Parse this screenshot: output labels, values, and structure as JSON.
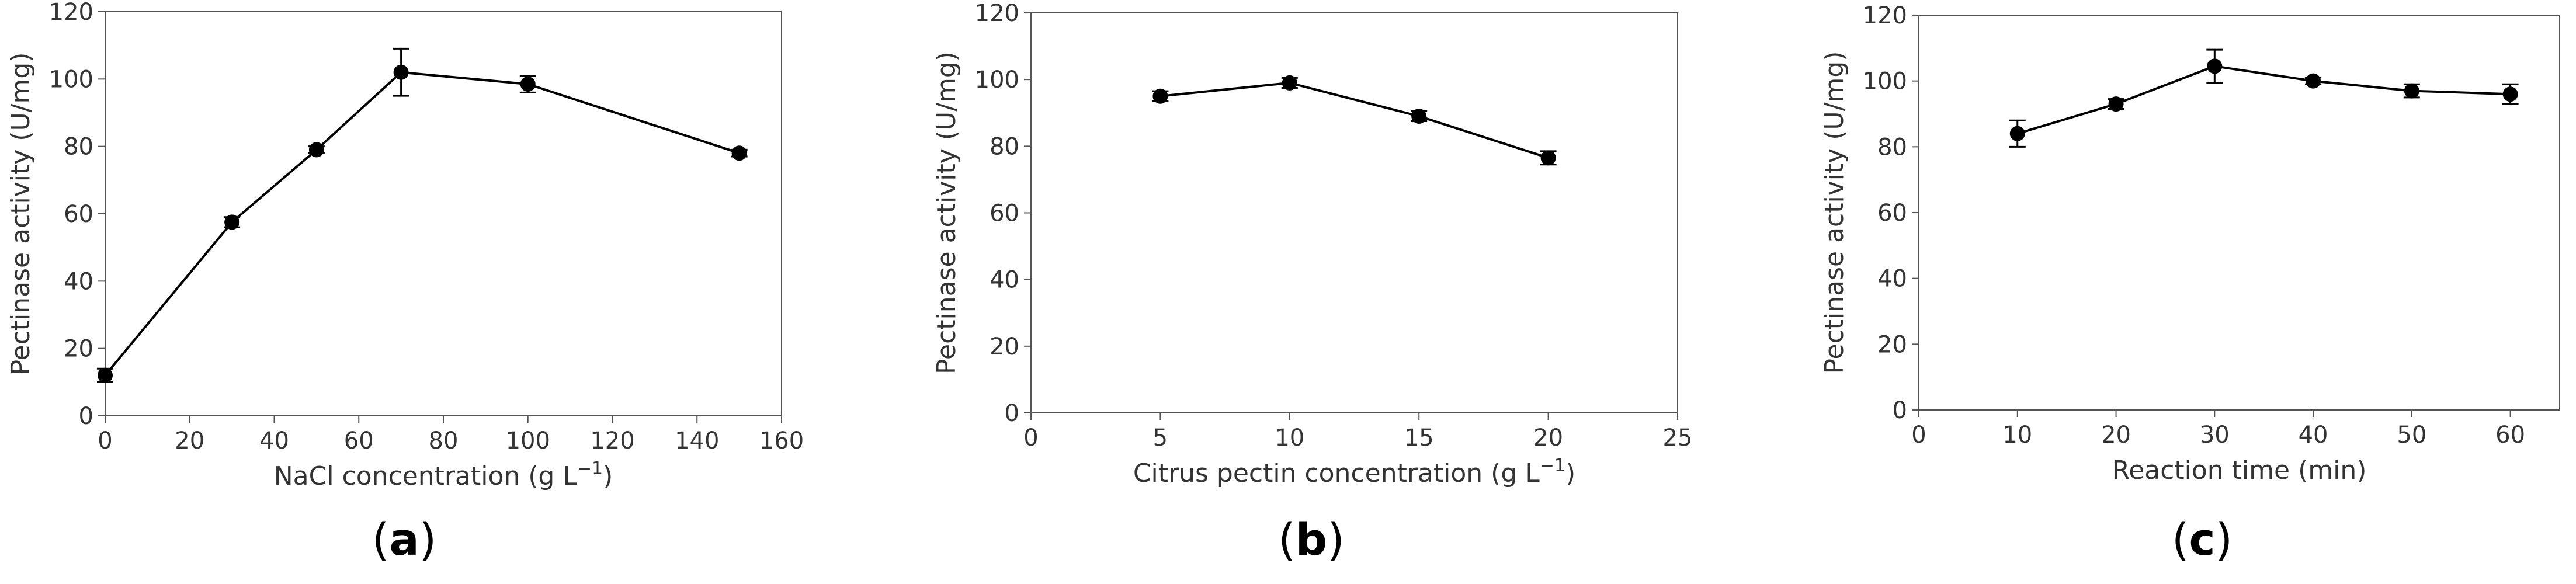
{
  "chart_data": [
    {
      "type": "line",
      "panel": "a",
      "panel_label": "a",
      "xlabel": "NaCl concentration (g L",
      "xlabel_sup": "−1",
      "xlabel_close": ")",
      "ylabel": "Pectinase activity (U/mg)",
      "xlim": [
        0,
        160
      ],
      "ylim": [
        0,
        120
      ],
      "xticks": [
        "0",
        "20",
        "40",
        "60",
        "80",
        "100",
        "120",
        "140",
        "160"
      ],
      "yticks": [
        "0",
        "20",
        "40",
        "60",
        "80",
        "100",
        "120"
      ],
      "x": [
        0,
        30,
        50,
        70,
        100,
        150
      ],
      "y": [
        12,
        57.5,
        79,
        102,
        98.5,
        78
      ],
      "err": [
        2,
        1.5,
        1,
        7,
        2.5,
        1
      ]
    },
    {
      "type": "line",
      "panel": "b",
      "panel_label": "b",
      "xlabel": "Citrus pectin concentration (g L",
      "xlabel_sup": "−1",
      "xlabel_close": ")",
      "ylabel": "Pectinase activity (U/mg)",
      "xlim": [
        0,
        25
      ],
      "ylim": [
        0,
        120
      ],
      "xticks": [
        "0",
        "5",
        "10",
        "15",
        "20",
        "25"
      ],
      "yticks": [
        "0",
        "20",
        "40",
        "60",
        "80",
        "100",
        "120"
      ],
      "x": [
        5,
        10,
        15,
        20
      ],
      "y": [
        95,
        99,
        89,
        76.5
      ],
      "err": [
        1.5,
        1.5,
        1.5,
        2
      ]
    },
    {
      "type": "line",
      "panel": "c",
      "panel_label": "c",
      "xlabel": "Reaction time (min)",
      "xlabel_sup": "",
      "xlabel_close": "",
      "ylabel": "Pectinase activity (U/mg)",
      "xlim": [
        0,
        65
      ],
      "ylim": [
        0,
        120
      ],
      "xticks": [
        "0",
        "10",
        "20",
        "30",
        "40",
        "50",
        "60"
      ],
      "yticks": [
        "0",
        "20",
        "40",
        "60",
        "80",
        "100",
        "120"
      ],
      "x": [
        10,
        20,
        30,
        40,
        50,
        60
      ],
      "y": [
        84,
        93,
        104.5,
        100,
        97,
        96
      ],
      "err": [
        4,
        1.5,
        5,
        1,
        2,
        3
      ]
    }
  ]
}
